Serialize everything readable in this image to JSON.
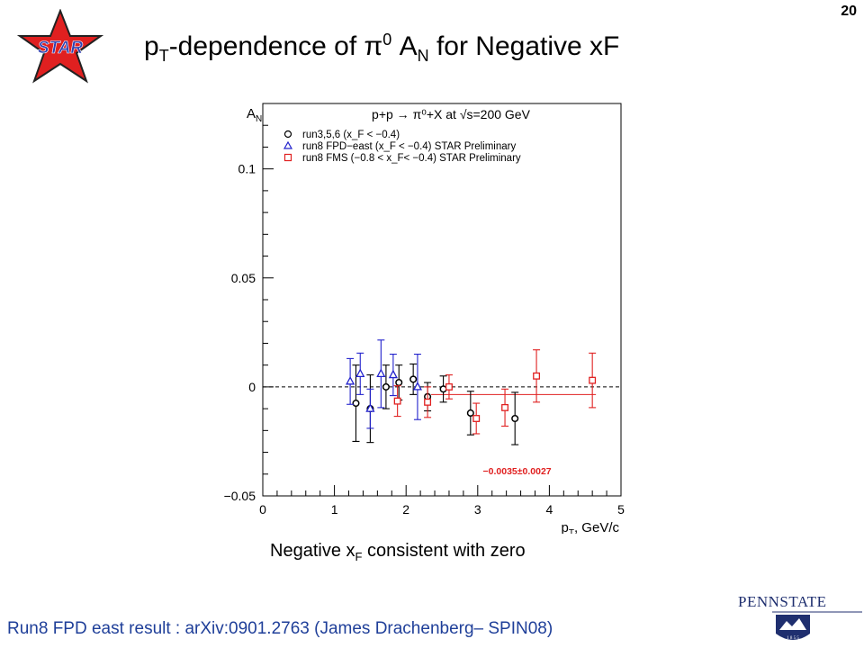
{
  "slide": {
    "page_number": "20",
    "logo_text": "STAR",
    "title": {
      "p": "p",
      "sub1": "T",
      "mid": "-dependence of π",
      "sup": "0",
      "a": " A",
      "sub2": "N",
      "tail": " for Negative xF"
    },
    "caption": {
      "pre": "Negative x",
      "sub": "F",
      "post": " consistent with zero"
    },
    "footer": "Run8 FPD east result : arXiv:0901.2763 (James Drachenberg– SPIN08)",
    "psu_logo_text": "PENNSTATE",
    "psu_year": "1 8 5 5"
  },
  "chart_data": {
    "type": "scatter",
    "title": "p+p → π⁰+X at √s=200 GeV",
    "ylabel": "A_N",
    "xlabel": "p_T, GeV/c",
    "xlim": [
      0,
      5
    ],
    "ylim": [
      -0.05,
      0.13
    ],
    "xticks": [
      0,
      1,
      2,
      3,
      4,
      5
    ],
    "yticks": [
      -0.05,
      0,
      0.05,
      0.1
    ],
    "ytick_labels": [
      "−0.05",
      "0",
      "0.05",
      "0.1"
    ],
    "xtick_labels": [
      "0",
      "1",
      "2",
      "3",
      "4",
      "5"
    ],
    "legend": {
      "position": "top",
      "entries": [
        {
          "marker": "circle",
          "color": "#000000",
          "text": "run3,5,6          (x_F < −0.4)"
        },
        {
          "marker": "triangle",
          "color": "#2222cc",
          "text": "run8 FPD−east (x_F < −0.4) STAR Preliminary"
        },
        {
          "marker": "square",
          "color": "#e02020",
          "text": "run8 FMS (−0.8 < x_F< −0.4) STAR Preliminary"
        }
      ]
    },
    "series": [
      {
        "name": "run3,5,6",
        "marker": "circle",
        "color": "#000000",
        "points": [
          {
            "x": 1.3,
            "y": -0.0075,
            "err": 0.0175
          },
          {
            "x": 1.5,
            "y": -0.01,
            "err": 0.0155
          },
          {
            "x": 1.72,
            "y": 0.0,
            "err": 0.01
          },
          {
            "x": 1.9,
            "y": 0.002,
            "err": 0.008
          },
          {
            "x": 2.1,
            "y": 0.0035,
            "err": 0.007
          },
          {
            "x": 2.3,
            "y": -0.0045,
            "err": 0.0065
          },
          {
            "x": 2.52,
            "y": -0.001,
            "err": 0.006
          },
          {
            "x": 2.9,
            "y": -0.012,
            "err": 0.01
          },
          {
            "x": 3.52,
            "y": -0.0145,
            "err": 0.012
          }
        ]
      },
      {
        "name": "run8 FPD-east",
        "marker": "triangle",
        "color": "#2222cc",
        "points": [
          {
            "x": 1.22,
            "y": 0.0025,
            "err": 0.0105
          },
          {
            "x": 1.36,
            "y": 0.006,
            "err": 0.0095
          },
          {
            "x": 1.5,
            "y": -0.01,
            "err": 0.009
          },
          {
            "x": 1.65,
            "y": 0.006,
            "err": 0.0155
          },
          {
            "x": 1.82,
            "y": 0.0055,
            "err": 0.0095
          },
          {
            "x": 2.16,
            "y": 0.0,
            "err": 0.015
          }
        ]
      },
      {
        "name": "run8 FMS",
        "marker": "square",
        "color": "#e02020",
        "points": [
          {
            "x": 1.88,
            "y": -0.0065,
            "err": 0.007
          },
          {
            "x": 2.3,
            "y": -0.007,
            "err": 0.007
          },
          {
            "x": 2.6,
            "y": 0.0,
            "err": 0.0055
          },
          {
            "x": 2.98,
            "y": -0.0145,
            "err": 0.007
          },
          {
            "x": 3.38,
            "y": -0.0095,
            "err": 0.0085
          },
          {
            "x": 3.82,
            "y": 0.005,
            "err": 0.012
          },
          {
            "x": 4.6,
            "y": 0.003,
            "err": 0.0125
          }
        ]
      }
    ],
    "fit": {
      "value_text": "−0.0035±0.0027",
      "y": -0.0035,
      "x_range": [
        2.35,
        4.65
      ],
      "color": "#e02020"
    }
  }
}
